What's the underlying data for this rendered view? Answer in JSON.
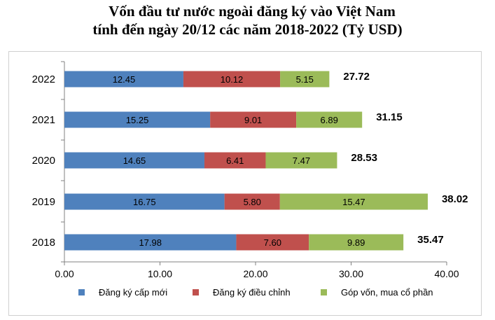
{
  "title": {
    "line1": "Vốn đầu tư nước ngoài đăng ký vào Việt Nam",
    "line2": "tính đến ngày 20/12 các năm 2018-2022 (Tỷ USD)"
  },
  "chart_data": {
    "type": "bar",
    "orientation": "horizontal",
    "stacked": true,
    "categories": [
      "2022",
      "2021",
      "2020",
      "2019",
      "2018"
    ],
    "series": [
      {
        "name": "Đăng ký cấp mới",
        "color": "#4f81bd",
        "values": [
          12.45,
          15.25,
          14.65,
          16.75,
          17.98
        ],
        "labels": [
          "12.45",
          "15.25",
          "14.65",
          "16.75",
          "17.98"
        ]
      },
      {
        "name": "Đăng ký điều chỉnh",
        "color": "#c0504d",
        "values": [
          10.12,
          9.01,
          6.41,
          5.8,
          7.6
        ],
        "labels": [
          "10.12",
          "9.01",
          "6.41",
          "5.80",
          "7.60"
        ]
      },
      {
        "name": "Góp vốn, mua cổ phần",
        "color": "#9bbb59",
        "values": [
          5.15,
          6.89,
          7.47,
          15.47,
          9.89
        ],
        "labels": [
          "5.15",
          "6.89",
          "7.47",
          "15.47",
          "9.89"
        ]
      }
    ],
    "totals": [
      "27.72",
      "31.15",
      "28.53",
      "38.02",
      "35.47"
    ],
    "xlim": [
      0,
      40
    ],
    "xticks": [
      "0.00",
      "10.00",
      "20.00",
      "30.00",
      "40.00"
    ],
    "legend_position": "bottom",
    "grid": false
  }
}
